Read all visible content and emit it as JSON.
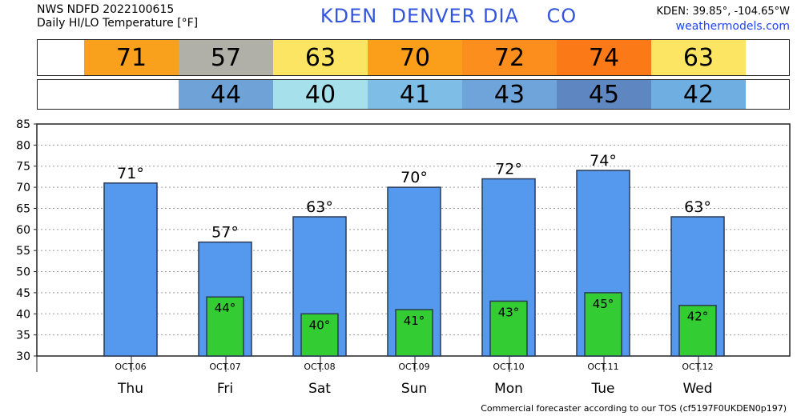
{
  "header": {
    "line1": "NWS NDFD 2022100615",
    "line2": "Daily HI/LO Temperature [°F]",
    "station": "KDEN  DENVER DIA    CO",
    "coords": "KDEN: 39.85°, -104.65°W",
    "site": "weathermodels.com"
  },
  "hi_row": [
    {
      "value": "71",
      "color": "#f9a11c"
    },
    {
      "value": "57",
      "color": "#b0afa8"
    },
    {
      "value": "63",
      "color": "#fce562"
    },
    {
      "value": "70",
      "color": "#fb9f1b"
    },
    {
      "value": "72",
      "color": "#fb8e1d"
    },
    {
      "value": "74",
      "color": "#fc7918"
    },
    {
      "value": "63",
      "color": "#fce562"
    }
  ],
  "lo_row": [
    {
      "value": "44",
      "color": "#6fa3d8"
    },
    {
      "value": "40",
      "color": "#a6e0ea"
    },
    {
      "value": "41",
      "color": "#7ebde6"
    },
    {
      "value": "43",
      "color": "#6fa4db"
    },
    {
      "value": "45",
      "color": "#5e87c2"
    },
    {
      "value": "42",
      "color": "#6eaee0"
    }
  ],
  "chart_data": {
    "type": "bar",
    "categories": [
      "OCT.06",
      "OCT.07",
      "OCT.08",
      "OCT.09",
      "OCT.10",
      "OCT.11",
      "OCT.12"
    ],
    "days": [
      "Thu",
      "Fri",
      "Sat",
      "Sun",
      "Mon",
      "Tue",
      "Wed"
    ],
    "series": [
      {
        "values": [
          71,
          57,
          63,
          70,
          72,
          74,
          63
        ],
        "color": "#5599ef"
      },
      {
        "values": [
          null,
          44,
          40,
          41,
          43,
          45,
          42
        ],
        "color": "#33cc33"
      }
    ],
    "hi_labels": [
      "71°",
      "57°",
      "63°",
      "70°",
      "72°",
      "74°",
      "63°"
    ],
    "lo_labels": [
      "",
      "44°",
      "40°",
      "41°",
      "43°",
      "45°",
      "42°"
    ],
    "ylim": [
      30,
      85
    ],
    "yticks": [
      "30",
      "35",
      "40",
      "45",
      "50",
      "55",
      "60",
      "65",
      "70",
      "75",
      "80",
      "85"
    ],
    "grid": true
  },
  "footer": "Commercial forecaster according to our TOS (cf5197F0UKDEN0p197)"
}
